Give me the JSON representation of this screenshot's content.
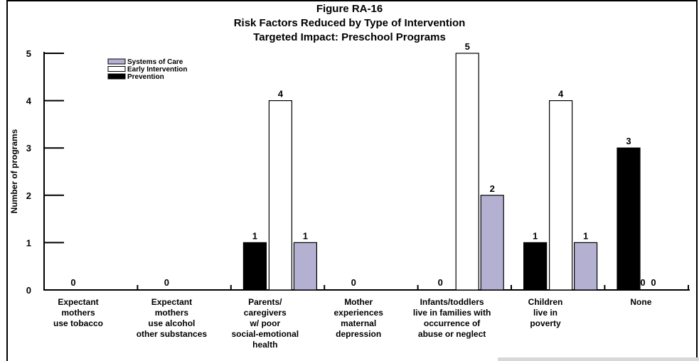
{
  "chart_data": {
    "type": "bar",
    "title": "Figure RA-16",
    "subtitle": "Risk Factors Reduced by Type of Intervention",
    "subtitle2": "Targeted Impact: Preschool Programs",
    "xlabel": "",
    "ylabel": "Number of programs",
    "ylim": [
      0,
      5
    ],
    "yticks": [
      "0",
      "1",
      "2",
      "3",
      "4",
      "5"
    ],
    "legend_position": "top-left",
    "categories": [
      [
        "Expectant",
        "mothers",
        "use tobacco"
      ],
      [
        "Expectant",
        "mothers",
        "use alcohol",
        "other substances"
      ],
      [
        "Parents/",
        "caregivers",
        "w/ poor",
        "social-emotional",
        "health"
      ],
      [
        "Mother",
        "experiences",
        "maternal",
        "depression"
      ],
      [
        "Infants/toddlers",
        "live in families with",
        "occurrence of",
        "abuse or neglect"
      ],
      [
        "Children",
        "live in",
        "poverty"
      ],
      [
        "None"
      ]
    ],
    "series": [
      {
        "name": "Prevention",
        "color": "#000000",
        "values": [
          0,
          0,
          1,
          0,
          0,
          1,
          3
        ]
      },
      {
        "name": "Early Intervention",
        "color": "#ffffff",
        "values": [
          0,
          0,
          4,
          0,
          5,
          4,
          0
        ]
      },
      {
        "name": "Systems of Care",
        "color": "#b3b0d2",
        "values": [
          0,
          0,
          1,
          0,
          2,
          1,
          0
        ]
      }
    ],
    "legend_order": [
      "Systems of Care",
      "Early Intervention",
      "Prevention"
    ],
    "value_labels": [
      {
        "category": 0,
        "text": "0"
      },
      {
        "category": 1,
        "text": "0"
      },
      {
        "category": 2,
        "series": 0,
        "text": "1"
      },
      {
        "category": 2,
        "series": 1,
        "text": "4"
      },
      {
        "category": 2,
        "series": 2,
        "text": "1"
      },
      {
        "category": 3,
        "text": "0"
      },
      {
        "category": 4,
        "series": 0,
        "text": "0"
      },
      {
        "category": 4,
        "series": 1,
        "text": "5"
      },
      {
        "category": 4,
        "series": 2,
        "text": "2"
      },
      {
        "category": 5,
        "series": 0,
        "text": "1"
      },
      {
        "category": 5,
        "series": 1,
        "text": "4"
      },
      {
        "category": 5,
        "series": 2,
        "text": "1"
      },
      {
        "category": 6,
        "series": 0,
        "text": "3"
      },
      {
        "category": 6,
        "series": 1,
        "text": "0"
      },
      {
        "category": 6,
        "series": 2,
        "text": "0"
      }
    ]
  }
}
